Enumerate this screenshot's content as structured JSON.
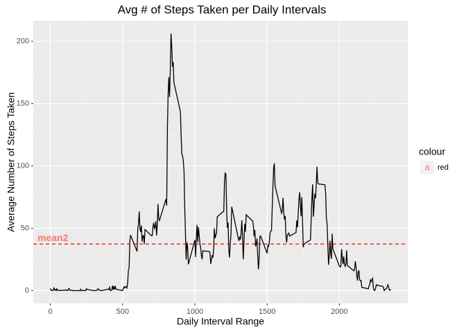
{
  "chart_data": {
    "type": "line",
    "title": "Avg # of Steps Taken per Daily Intervals",
    "x_label": "Daily Interval Range",
    "y_label": "Average Number of Steps Taken",
    "x": [
      0,
      5,
      10,
      15,
      20,
      25,
      30,
      35,
      40,
      45,
      50,
      55,
      100,
      105,
      110,
      115,
      120,
      125,
      130,
      135,
      140,
      145,
      150,
      155,
      200,
      205,
      210,
      215,
      220,
      225,
      230,
      235,
      240,
      245,
      250,
      255,
      300,
      305,
      310,
      315,
      320,
      325,
      330,
      335,
      340,
      345,
      350,
      355,
      400,
      405,
      410,
      415,
      420,
      425,
      430,
      435,
      440,
      445,
      450,
      455,
      500,
      505,
      510,
      515,
      520,
      525,
      530,
      535,
      540,
      545,
      550,
      555,
      600,
      605,
      610,
      615,
      620,
      625,
      630,
      635,
      640,
      645,
      650,
      655,
      700,
      705,
      710,
      715,
      720,
      725,
      730,
      735,
      740,
      745,
      750,
      755,
      800,
      805,
      810,
      815,
      820,
      825,
      830,
      835,
      840,
      845,
      850,
      855,
      900,
      905,
      910,
      915,
      920,
      925,
      930,
      935,
      940,
      945,
      950,
      955,
      1000,
      1005,
      1010,
      1015,
      1020,
      1025,
      1030,
      1035,
      1040,
      1045,
      1050,
      1055,
      1100,
      1105,
      1110,
      1115,
      1120,
      1125,
      1130,
      1135,
      1140,
      1145,
      1150,
      1155,
      1200,
      1205,
      1210,
      1215,
      1220,
      1225,
      1230,
      1235,
      1240,
      1245,
      1250,
      1255,
      1300,
      1305,
      1310,
      1315,
      1320,
      1325,
      1330,
      1335,
      1340,
      1345,
      1350,
      1355,
      1400,
      1405,
      1410,
      1415,
      1420,
      1425,
      1430,
      1435,
      1440,
      1445,
      1450,
      1455,
      1500,
      1505,
      1510,
      1515,
      1520,
      1525,
      1530,
      1535,
      1540,
      1545,
      1550,
      1555,
      1600,
      1605,
      1610,
      1615,
      1620,
      1625,
      1630,
      1635,
      1640,
      1645,
      1650,
      1655,
      1700,
      1705,
      1710,
      1715,
      1720,
      1725,
      1730,
      1735,
      1740,
      1745,
      1750,
      1755,
      1800,
      1805,
      1810,
      1815,
      1820,
      1825,
      1830,
      1835,
      1840,
      1845,
      1850,
      1855,
      1900,
      1905,
      1910,
      1915,
      1920,
      1925,
      1930,
      1935,
      1940,
      1945,
      1950,
      1955,
      2000,
      2005,
      2010,
      2015,
      2020,
      2025,
      2030,
      2035,
      2040,
      2045,
      2050,
      2055,
      2100,
      2105,
      2110,
      2115,
      2120,
      2125,
      2130,
      2135,
      2140,
      2145,
      2150,
      2155,
      2200,
      2205,
      2210,
      2215,
      2220,
      2225,
      2230,
      2235,
      2240,
      2245,
      2250,
      2255,
      2300,
      2305,
      2310,
      2315,
      2320,
      2325,
      2330,
      2335,
      2340,
      2345,
      2350,
      2355
    ],
    "series": [
      {
        "color": "#000000",
        "values": [
          1.7,
          0.3,
          0.1,
          0.2,
          0.1,
          2.1,
          0.5,
          0.9,
          0,
          1.5,
          0.3,
          0.1,
          0.3,
          0.7,
          0.2,
          0.3,
          0,
          1.1,
          1.8,
          0.2,
          0.2,
          0.4,
          0.3,
          0,
          0,
          0,
          1.1,
          0,
          0,
          0.1,
          0,
          0.2,
          0,
          0,
          1.5,
          0.9,
          0,
          0,
          0,
          0,
          0.2,
          0.6,
          1.6,
          0.6,
          0.5,
          0.1,
          0,
          0,
          1.2,
          0.9,
          2.6,
          0,
          0.3,
          0.4,
          4.1,
          0.7,
          3.5,
          0.8,
          3.1,
          1.1,
          0,
          1.6,
          3,
          2.2,
          3.3,
          3,
          2.1,
          6.1,
          16,
          18.3,
          39.5,
          44.5,
          31.5,
          49.3,
          53.8,
          63.5,
          50,
          47.1,
          52.2,
          39.3,
          44,
          44.2,
          37.4,
          49,
          44,
          44.2,
          51,
          54.5,
          49.9,
          51,
          55.7,
          44.3,
          52.3,
          69.5,
          57.8,
          56.2,
          73.4,
          68.2,
          129.4,
          157.5,
          171.2,
          155.4,
          177.3,
          206.2,
          195.9,
          179.6,
          183.4,
          167,
          143.5,
          124,
          109.1,
          108.1,
          103.7,
          95.96,
          66.2,
          45.2,
          24.8,
          38.8,
          34.98,
          21.1,
          40.6,
          26.98,
          42.4,
          52.7,
          38.9,
          50.8,
          44.3,
          37.4,
          34.7,
          28.3,
          25.1,
          31.9,
          31.4,
          29.7,
          21.3,
          25.5,
          28.4,
          26.5,
          33.4,
          50,
          42,
          44.6,
          46,
          59.2,
          63.9,
          87.7,
          94.8,
          92.8,
          63.4,
          50.2,
          54.5,
          32.4,
          26.5,
          37.7,
          45.1,
          67.3,
          42.3,
          39.9,
          43.3,
          40.98,
          46.2,
          56.4,
          42.8,
          25.1,
          39.97,
          53.5,
          47.3,
          60.8,
          55.8,
          51.96,
          43.6,
          48.7,
          35.5,
          37.5,
          41.8,
          27.5,
          17.1,
          26.1,
          43.6,
          43.8,
          30,
          36.1,
          35.5,
          38.8,
          45.96,
          47.75,
          48.1,
          65.3,
          82.9,
          98.7,
          102.1,
          83.96,
          62.1,
          64.1,
          74.5,
          63.2,
          56.9,
          59.8,
          43.9,
          38.6,
          44.7,
          45.5,
          46.2,
          43.7,
          46.6,
          56.3,
          50.7,
          61.2,
          72.7,
          78.9,
          68.9,
          59.7,
          75.1,
          56.5,
          34.8,
          37.5,
          40.7,
          58,
          74.7,
          85.3,
          59.3,
          67.8,
          77.7,
          74.2,
          85.3,
          99.5,
          86.6,
          85.6,
          84.9,
          77.8,
          58,
          53.4,
          36.3,
          20.7,
          27.4,
          40,
          30.2,
          25.5,
          45.7,
          33.5,
          19.6,
          19,
          19.3,
          33.3,
          26.8,
          21.2,
          27.3,
          21.3,
          19.5,
          21.3,
          32.3,
          20.2,
          15.9,
          17.2,
          23.5,
          19.2,
          12.5,
          8,
          14.7,
          16.3,
          8.7,
          7.8,
          8.1,
          2.6,
          1.5,
          3.7,
          4.8,
          8.5,
          7.1,
          8.7,
          9.8,
          2.2,
          0.3,
          0.1,
          1.6,
          4.6,
          3.3,
          2.8,
          0,
          0.8,
          0.96,
          1.6,
          2.6,
          4.7,
          3.3,
          0.6,
          0.2,
          1.1
        ]
      }
    ],
    "hline": {
      "value": 37.38,
      "color": "#ff0000",
      "label": "mean2",
      "label_color": "#f8766d"
    },
    "legend": {
      "title": "colour",
      "key_glyph": "a",
      "labels": [
        "red"
      ],
      "color": "#f8766d"
    },
    "xlim": [
      -118,
      2473
    ],
    "ylim": [
      -10.3,
      216.5
    ],
    "xticks": [
      0,
      500,
      1000,
      1500,
      2000
    ],
    "yticks": [
      0,
      50,
      100,
      150,
      200
    ],
    "x_minor_ticks": [
      250,
      750,
      1250,
      1750,
      2250
    ],
    "y_minor_ticks": [
      25,
      75,
      125,
      175
    ],
    "grid": true
  }
}
